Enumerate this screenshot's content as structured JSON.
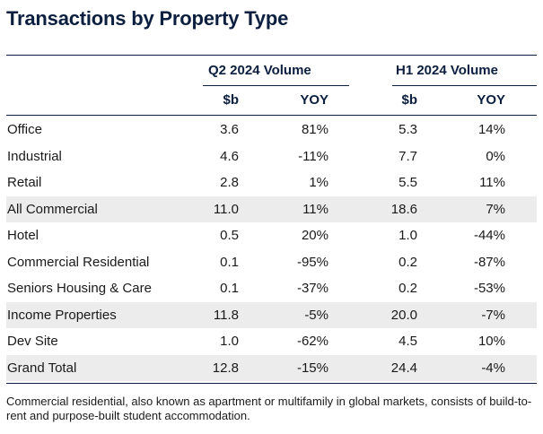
{
  "title": "Transactions by Property Type",
  "groups": [
    {
      "label": "Q2 2024 Volume"
    },
    {
      "label": "H1 2024 Volume"
    }
  ],
  "subheaders": {
    "b1": "$b",
    "y1": "YOY",
    "b2": "$b",
    "y2": "YOY"
  },
  "rows": [
    {
      "label": "Office",
      "b1": "3.6",
      "y1": "81%",
      "b2": "5.3",
      "y2": "14%",
      "shaded": false
    },
    {
      "label": "Industrial",
      "b1": "4.6",
      "y1": "-11%",
      "b2": "7.7",
      "y2": "0%",
      "shaded": false
    },
    {
      "label": "Retail",
      "b1": "2.8",
      "y1": "1%",
      "b2": "5.5",
      "y2": "11%",
      "shaded": false
    },
    {
      "label": "All Commercial",
      "b1": "11.0",
      "y1": "11%",
      "b2": "18.6",
      "y2": "7%",
      "shaded": true
    },
    {
      "label": "Hotel",
      "b1": "0.5",
      "y1": "20%",
      "b2": "1.0",
      "y2": "-44%",
      "shaded": false
    },
    {
      "label": "Commercial Residential",
      "b1": "0.1",
      "y1": "-95%",
      "b2": "0.2",
      "y2": "-87%",
      "shaded": false
    },
    {
      "label": "Seniors Housing & Care",
      "b1": "0.1",
      "y1": "-37%",
      "b2": "0.2",
      "y2": "-53%",
      "shaded": false
    },
    {
      "label": "Income Properties",
      "b1": "11.8",
      "y1": "-5%",
      "b2": "20.0",
      "y2": "-7%",
      "shaded": true
    },
    {
      "label": "Dev Site",
      "b1": "1.0",
      "y1": "-62%",
      "b2": "4.5",
      "y2": "10%",
      "shaded": false
    },
    {
      "label": "Grand Total",
      "b1": "12.8",
      "y1": "-15%",
      "b2": "24.4",
      "y2": "-4%",
      "shaded": true
    }
  ],
  "footnote": "Commercial residential, also known as apartment or multifamily in global markets, consists of build-to-rent and purpose-built student accommodation.",
  "colors": {
    "heading": "#0c1f3f",
    "shade": "#ececec"
  }
}
